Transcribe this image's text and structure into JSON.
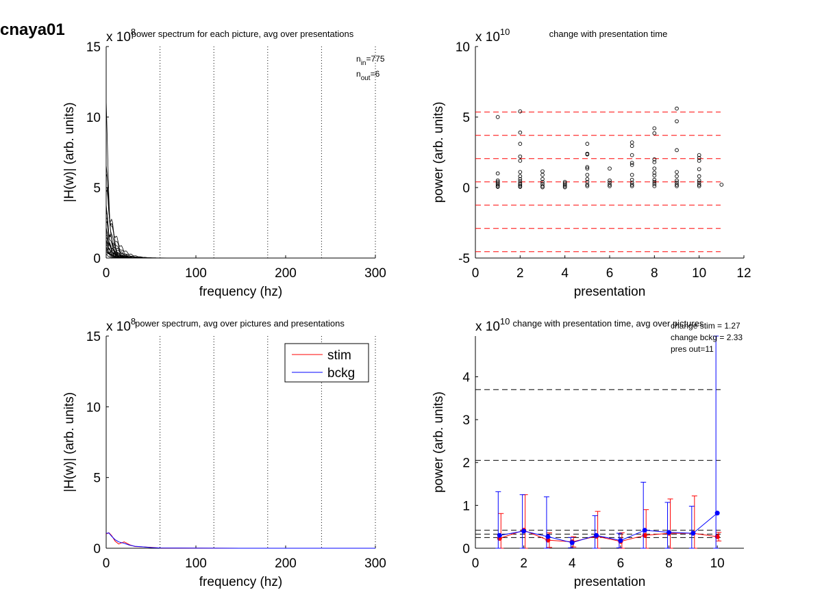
{
  "figure": {
    "suptitle": "cnaya01"
  },
  "chart_data": [
    {
      "type": "line",
      "title": "power spectrum for each picture, avg over presentations",
      "xlabel": "frequency (hz)",
      "ylabel": "|H(w)| (arb. units)",
      "y_exponent": "8",
      "xlim": [
        0,
        300
      ],
      "ylim": [
        0,
        15
      ],
      "xticks": [
        0,
        100,
        200,
        300
      ],
      "yticks": [
        0,
        5,
        10,
        15
      ],
      "vlines": [
        60,
        120,
        180,
        240,
        300
      ],
      "annotations": [
        {
          "base": "n",
          "sub": "in",
          "value": "=775"
        },
        {
          "base": "n",
          "sub": "out",
          "value": "=6"
        }
      ],
      "peaks": [
        11.2,
        6.6,
        6.0,
        5.0,
        4.7,
        3.8,
        3.5,
        3.2,
        2.8,
        2.5,
        2.2,
        2.0,
        1.8,
        1.6,
        1.4,
        1.3,
        1.2,
        1.1,
        1.0,
        0.9,
        0.8,
        0.7,
        0.6,
        0.5,
        0.4,
        0.3
      ],
      "line_color": "#000000"
    },
    {
      "type": "scatter",
      "title": "change with presentation time",
      "xlabel": "presentation",
      "ylabel": "power (arb. units)",
      "y_exponent": "10",
      "xlim": [
        0,
        12
      ],
      "ylim": [
        -5,
        10
      ],
      "xticks": [
        0,
        2,
        4,
        6,
        8,
        10,
        12
      ],
      "yticks": [
        -5,
        0,
        5,
        10
      ],
      "hlines": [
        5.35,
        3.7,
        2.05,
        0.4,
        -1.25,
        -2.9,
        -4.55
      ],
      "hline_color": "#ff0000",
      "points": [
        [
          1,
          5.0
        ],
        [
          1,
          1.0
        ],
        [
          1,
          0.5
        ],
        [
          1,
          0.4
        ],
        [
          1,
          0.3
        ],
        [
          1,
          0.2
        ],
        [
          1,
          0.1
        ],
        [
          1,
          0.05
        ],
        [
          2,
          5.4
        ],
        [
          2,
          3.9
        ],
        [
          2,
          3.1
        ],
        [
          2,
          2.2
        ],
        [
          2,
          1.9
        ],
        [
          2,
          1.1
        ],
        [
          2,
          0.8
        ],
        [
          2,
          0.6
        ],
        [
          2,
          0.45
        ],
        [
          2,
          0.3
        ],
        [
          2,
          0.2
        ],
        [
          2,
          0.1
        ],
        [
          2,
          0.05
        ],
        [
          3,
          1.15
        ],
        [
          3,
          0.9
        ],
        [
          3,
          0.6
        ],
        [
          3,
          0.4
        ],
        [
          3,
          0.25
        ],
        [
          3,
          0.1
        ],
        [
          3,
          0.02
        ],
        [
          4,
          0.4
        ],
        [
          4,
          0.3
        ],
        [
          4,
          0.2
        ],
        [
          4,
          0.1
        ],
        [
          4,
          0.02
        ],
        [
          5,
          3.1
        ],
        [
          5,
          2.4
        ],
        [
          5,
          2.35
        ],
        [
          5,
          1.45
        ],
        [
          5,
          1.35
        ],
        [
          5,
          0.9
        ],
        [
          5,
          0.6
        ],
        [
          5,
          0.4
        ],
        [
          5,
          0.2
        ],
        [
          5,
          0.1
        ],
        [
          6,
          1.35
        ],
        [
          6,
          0.5
        ],
        [
          6,
          0.35
        ],
        [
          6,
          0.2
        ],
        [
          6,
          0.1
        ],
        [
          7,
          3.2
        ],
        [
          7,
          2.95
        ],
        [
          7,
          2.3
        ],
        [
          7,
          1.75
        ],
        [
          7,
          1.6
        ],
        [
          7,
          0.9
        ],
        [
          7,
          0.55
        ],
        [
          7,
          0.35
        ],
        [
          7,
          0.2
        ],
        [
          7,
          0.1
        ],
        [
          8,
          4.2
        ],
        [
          8,
          3.85
        ],
        [
          8,
          2.0
        ],
        [
          8,
          1.8
        ],
        [
          8,
          1.35
        ],
        [
          8,
          1.05
        ],
        [
          8,
          0.85
        ],
        [
          8,
          0.55
        ],
        [
          8,
          0.4
        ],
        [
          8,
          0.25
        ],
        [
          8,
          0.1
        ],
        [
          9,
          5.6
        ],
        [
          9,
          4.7
        ],
        [
          9,
          2.65
        ],
        [
          9,
          1.1
        ],
        [
          9,
          0.8
        ],
        [
          9,
          0.5
        ],
        [
          9,
          0.35
        ],
        [
          9,
          0.2
        ],
        [
          9,
          0.1
        ],
        [
          10,
          2.3
        ],
        [
          10,
          2.1
        ],
        [
          10,
          1.9
        ],
        [
          10,
          1.3
        ],
        [
          10,
          0.8
        ],
        [
          10,
          0.5
        ],
        [
          10,
          0.35
        ],
        [
          10,
          0.2
        ],
        [
          10,
          0.1
        ],
        [
          11,
          0.2
        ]
      ]
    },
    {
      "type": "line",
      "title": "power spectrum, avg over pictures and presentations",
      "xlabel": "frequency (hz)",
      "ylabel": "|H(w)| (arb. units)",
      "y_exponent": "8",
      "xlim": [
        0,
        300
      ],
      "ylim": [
        0,
        15
      ],
      "xticks": [
        0,
        100,
        200,
        300
      ],
      "yticks": [
        0,
        5,
        10,
        15
      ],
      "vlines": [
        60,
        120,
        180,
        240,
        300
      ],
      "legend": {
        "placement": "top-right"
      },
      "series": [
        {
          "name": "stim",
          "color": "#ff0000",
          "x": [
            0,
            3,
            6,
            10,
            14,
            20,
            26,
            32,
            40,
            50,
            60,
            80,
            150,
            300
          ],
          "y": [
            1.0,
            1.1,
            0.9,
            0.5,
            0.3,
            0.45,
            0.25,
            0.12,
            0.1,
            0.06,
            0.02,
            0.01,
            0.0,
            0.0
          ]
        },
        {
          "name": "bckg",
          "color": "#0000ff",
          "x": [
            0,
            3,
            6,
            10,
            14,
            20,
            26,
            32,
            40,
            50,
            60,
            80,
            150,
            300
          ],
          "y": [
            1.05,
            1.08,
            0.85,
            0.6,
            0.45,
            0.35,
            0.22,
            0.14,
            0.1,
            0.05,
            0.02,
            0.01,
            0.0,
            0.0
          ]
        }
      ]
    },
    {
      "type": "line",
      "title": "change with presentation time, avg over pictures",
      "xlabel": "presentation",
      "ylabel": "power (arb. units)",
      "y_exponent": "10",
      "xlim": [
        0,
        11.1
      ],
      "ylim": [
        0,
        4.95
      ],
      "xticks": [
        0,
        2,
        4,
        6,
        8,
        10
      ],
      "yticks": [
        0,
        1,
        2,
        3,
        4
      ],
      "hlines": [
        3.7,
        2.05,
        0.42,
        0.33,
        0.25
      ],
      "hline_color": "#000000",
      "annotations": [
        "change stim = 1.27",
        "change bckg = 2.33",
        "pres out=11"
      ],
      "series": [
        {
          "name": "stim",
          "color": "#ff0000",
          "x": [
            1,
            2,
            3,
            4,
            5,
            6,
            7,
            8,
            9,
            10
          ],
          "y": [
            0.23,
            0.42,
            0.19,
            0.15,
            0.28,
            0.16,
            0.3,
            0.35,
            0.35,
            0.27
          ],
          "err": [
            0.58,
            0.83,
            0.17,
            0.12,
            0.58,
            0.2,
            0.6,
            0.8,
            0.87,
            0.1
          ]
        },
        {
          "name": "bckg",
          "color": "#0000ff",
          "x": [
            1,
            2,
            3,
            4,
            5,
            6,
            7,
            8,
            9,
            10
          ],
          "y": [
            0.3,
            0.4,
            0.27,
            0.13,
            0.3,
            0.18,
            0.42,
            0.37,
            0.35,
            0.82
          ],
          "err": [
            1.02,
            0.85,
            0.93,
            0.12,
            0.46,
            0.17,
            1.12,
            0.7,
            0.63,
            4.2
          ]
        }
      ]
    }
  ]
}
